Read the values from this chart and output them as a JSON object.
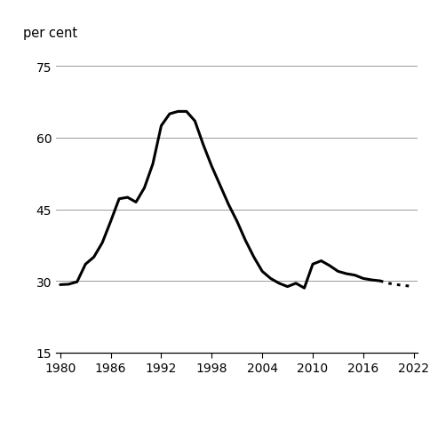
{
  "years_solid": [
    1980,
    1981,
    1982,
    1983,
    1984,
    1985,
    1986,
    1987,
    1988,
    1989,
    1990,
    1991,
    1992,
    1993,
    1994,
    1995,
    1996,
    1997,
    1998,
    1999,
    2000,
    2001,
    2002,
    2003,
    2004,
    2005,
    2006,
    2007,
    2008,
    2009,
    2010,
    2011,
    2012,
    2013,
    2014,
    2015,
    2016,
    2017,
    2018
  ],
  "values_solid": [
    29.2,
    29.3,
    29.8,
    33.5,
    35.0,
    38.0,
    42.5,
    47.2,
    47.5,
    46.5,
    49.5,
    54.5,
    62.5,
    65.0,
    65.5,
    65.5,
    63.5,
    58.5,
    54.0,
    50.0,
    46.0,
    42.5,
    38.5,
    35.0,
    32.0,
    30.5,
    29.5,
    28.8,
    29.5,
    28.5,
    33.5,
    34.2,
    33.2,
    32.0,
    31.5,
    31.2,
    30.5,
    30.2,
    30.0
  ],
  "years_dotted": [
    2018,
    2019,
    2020,
    2021,
    2022
  ],
  "values_dotted": [
    30.0,
    29.5,
    29.2,
    29.0,
    28.8
  ],
  "yticks": [
    15,
    30,
    45,
    60,
    75
  ],
  "xticks": [
    1980,
    1986,
    1992,
    1998,
    2004,
    2010,
    2016,
    2022
  ],
  "ylabel": "per cent",
  "xlim": [
    1979.5,
    2022.5
  ],
  "ylim": [
    15,
    80
  ],
  "line_color": "#000000",
  "line_width": 2.2,
  "grid_color": "#999999",
  "bg_color": "#ffffff"
}
